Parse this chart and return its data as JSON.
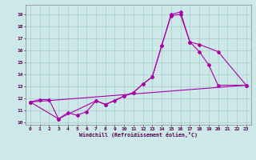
{
  "xlabel": "Windchill (Refroidissement éolien,°C)",
  "xlim": [
    -0.5,
    23.5
  ],
  "ylim": [
    9.8,
    19.8
  ],
  "yticks": [
    10,
    11,
    12,
    13,
    14,
    15,
    16,
    17,
    18,
    19
  ],
  "xticks": [
    0,
    1,
    2,
    3,
    4,
    5,
    6,
    7,
    8,
    9,
    10,
    11,
    12,
    13,
    14,
    15,
    16,
    17,
    18,
    19,
    20,
    21,
    22,
    23
  ],
  "bg_color": "#cce8e8",
  "grid_color": "#aacccc",
  "line_color": "#aa00aa",
  "line1_x": [
    0,
    23
  ],
  "line1_y": [
    11.7,
    13.1
  ],
  "line2_x": [
    0,
    1,
    2,
    3,
    4,
    5,
    6,
    7,
    8,
    9,
    10,
    11,
    12,
    13,
    14,
    15,
    16,
    17,
    18,
    19,
    20,
    23
  ],
  "line2_y": [
    11.7,
    11.9,
    11.9,
    10.3,
    10.8,
    10.6,
    10.9,
    11.8,
    11.5,
    11.8,
    12.2,
    12.5,
    13.2,
    13.8,
    16.4,
    18.9,
    19.0,
    16.7,
    15.9,
    14.8,
    13.1,
    13.1
  ],
  "line3_x": [
    0,
    3,
    7,
    8,
    10,
    11,
    12,
    13,
    14,
    15,
    16,
    17,
    18,
    20,
    23
  ],
  "line3_y": [
    11.7,
    10.3,
    11.8,
    11.5,
    12.2,
    12.5,
    13.2,
    13.8,
    16.4,
    19.0,
    19.2,
    16.7,
    16.5,
    15.9,
    13.1
  ]
}
